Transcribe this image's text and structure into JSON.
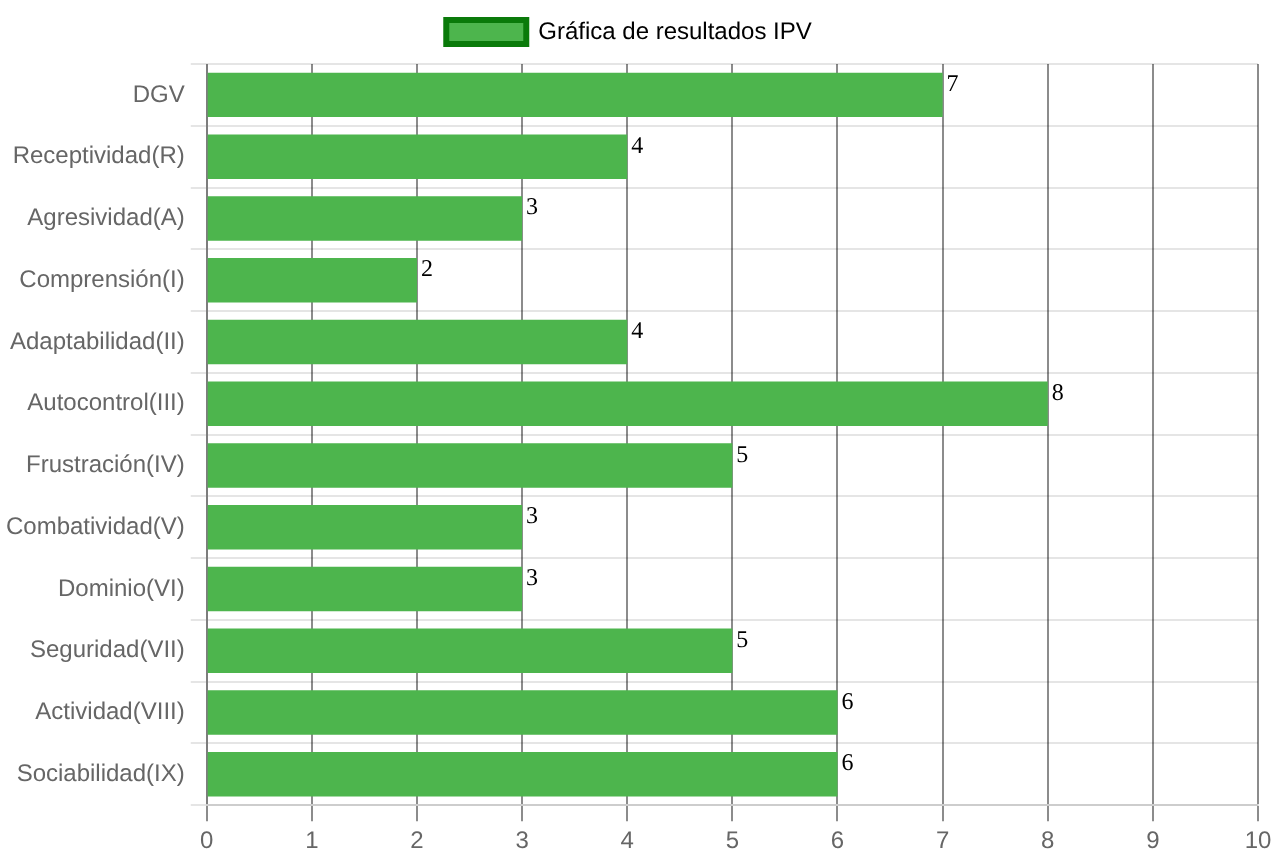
{
  "chart_data": {
    "type": "bar",
    "orientation": "horizontal",
    "categories": [
      "DGV",
      "Receptividad(R)",
      "Agresividad(A)",
      "Comprensión(I)",
      "Adaptabilidad(II)",
      "Autocontrol(III)",
      "Frustración(IV)",
      "Combatividad(V)",
      "Dominio(VI)",
      "Seguridad(VII)",
      "Actividad(VIII)",
      "Sociabilidad(IX)"
    ],
    "series": [
      {
        "name": "Gráfica de resultados IPV",
        "color": "#4db54d",
        "values": [
          7,
          4,
          3,
          2,
          4,
          8,
          5,
          3,
          3,
          5,
          6,
          6
        ]
      }
    ],
    "xlim": [
      0,
      10
    ],
    "xticks": [
      0,
      1,
      2,
      3,
      4,
      5,
      6,
      7,
      8,
      9,
      10
    ],
    "grid": true,
    "legend": "top",
    "data_labels": true
  }
}
